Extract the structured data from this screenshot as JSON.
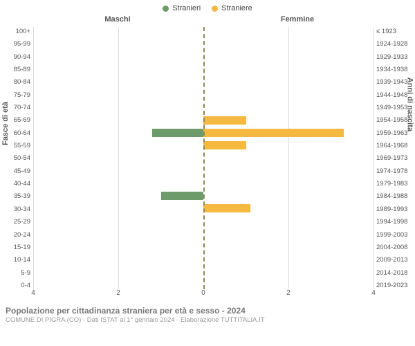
{
  "legend": {
    "male": "Stranieri",
    "female": "Straniere"
  },
  "colors": {
    "male": "#6d9b6a",
    "female": "#f5b942",
    "grid": "#dcdcdc",
    "center_dash": "#8a8a56",
    "bg": "#ffffff"
  },
  "column_headers": {
    "left": "Maschi",
    "right": "Femmine"
  },
  "yaxis_left_title": "Fasce di età",
  "yaxis_right_title": "Anni di nascita",
  "xaxis": {
    "max": 4,
    "ticks_left": [
      4,
      2,
      0
    ],
    "ticks_right": [
      0,
      2,
      4
    ]
  },
  "age_labels": [
    "100+",
    "95-99",
    "90-94",
    "85-89",
    "80-84",
    "75-79",
    "70-74",
    "65-69",
    "60-64",
    "55-59",
    "50-54",
    "45-49",
    "40-44",
    "35-39",
    "30-34",
    "25-29",
    "20-24",
    "15-19",
    "10-14",
    "5-9",
    "0-4"
  ],
  "birth_labels": [
    "≤ 1923",
    "1924-1928",
    "1929-1933",
    "1934-1938",
    "1939-1943",
    "1944-1948",
    "1949-1953",
    "1954-1958",
    "1959-1963",
    "1964-1968",
    "1969-1973",
    "1974-1978",
    "1979-1983",
    "1984-1988",
    "1989-1993",
    "1994-1998",
    "1999-2003",
    "2004-2008",
    "2009-2013",
    "2014-2018",
    "2019-2023"
  ],
  "series": {
    "male": [
      0,
      0,
      0,
      0,
      0,
      0,
      0,
      0,
      1.2,
      0,
      0,
      0,
      0,
      1,
      0,
      0,
      0,
      0,
      0,
      0,
      0
    ],
    "female": [
      0,
      0,
      0,
      0,
      0,
      0,
      0,
      1,
      3.3,
      1,
      0,
      0,
      0,
      0,
      1.1,
      0,
      0,
      0,
      0,
      0,
      0
    ]
  },
  "footer": {
    "title": "Popolazione per cittadinanza straniera per età e sesso - 2024",
    "subtitle": "COMUNE DI PIGRA (CO) - Dati ISTAT al 1° gennaio 2024 - Elaborazione TUTTITALIA.IT"
  },
  "typography": {
    "legend_fontsize": 11,
    "axis_tick_fontsize": 9.5,
    "axis_title_fontsize": 11,
    "footer_title_fontsize": 12,
    "footer_sub_fontsize": 9.5
  }
}
